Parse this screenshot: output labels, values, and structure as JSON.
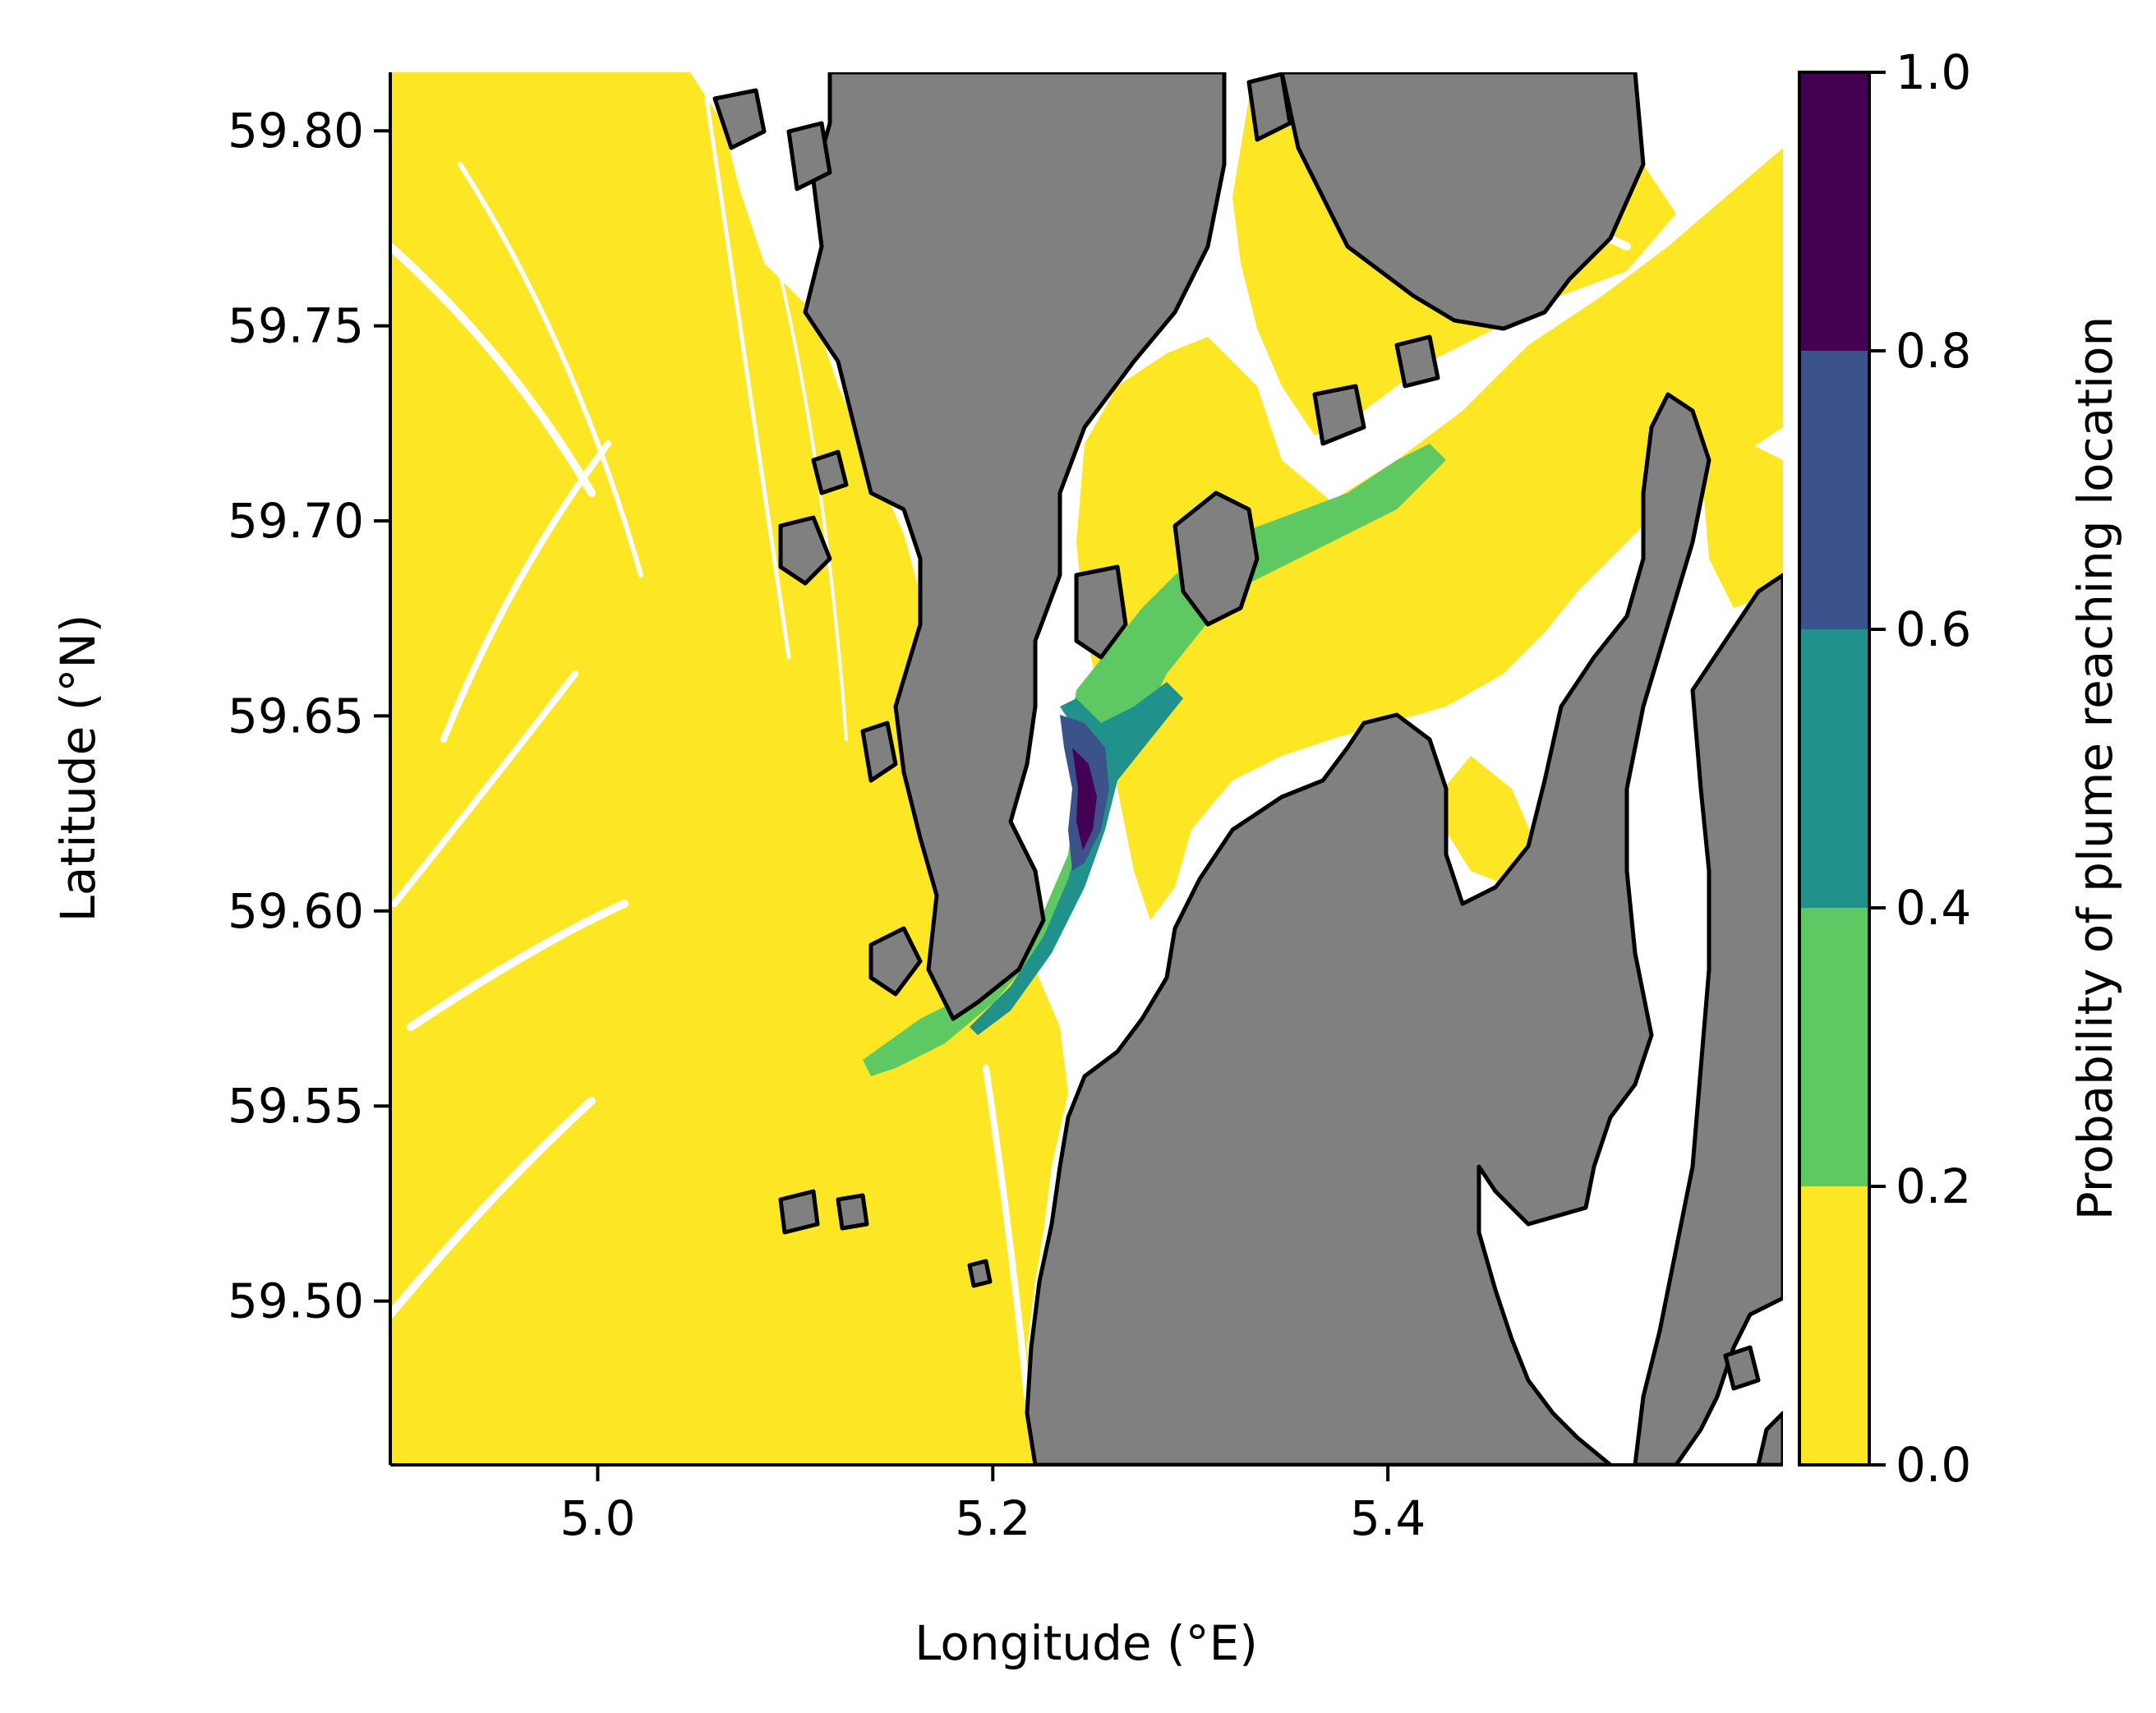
{
  "map": {
    "type": "probability-map",
    "xlabel": "Longitude (°E)",
    "ylabel": "Latitude (°N)",
    "xlim": [
      4.895,
      5.6
    ],
    "ylim": [
      59.458,
      59.815
    ],
    "x_ticks": [
      {
        "value": 5.0,
        "label": "5.0"
      },
      {
        "value": 5.2,
        "label": "5.2"
      },
      {
        "value": 5.4,
        "label": "5.4"
      }
    ],
    "y_ticks": [
      {
        "value": 59.5,
        "label": "59.50"
      },
      {
        "value": 59.55,
        "label": "59.55"
      },
      {
        "value": 59.6,
        "label": "59.60"
      },
      {
        "value": 59.65,
        "label": "59.65"
      },
      {
        "value": 59.7,
        "label": "59.70"
      },
      {
        "value": 59.75,
        "label": "59.75"
      },
      {
        "value": 59.8,
        "label": "59.80"
      }
    ],
    "colors": {
      "land": "#808080",
      "coastline": "#000000",
      "no_plume": "#ffffff"
    }
  },
  "colorbar": {
    "label": "Probability of plume reaching location",
    "range": [
      0,
      1
    ],
    "levels": [
      {
        "from": 0.0,
        "to": 0.2,
        "color": "#fde725"
      },
      {
        "from": 0.2,
        "to": 0.4,
        "color": "#5ec962"
      },
      {
        "from": 0.4,
        "to": 0.6,
        "color": "#21918c"
      },
      {
        "from": 0.6,
        "to": 0.8,
        "color": "#3b528b"
      },
      {
        "from": 0.8,
        "to": 1.0,
        "color": "#440154"
      }
    ],
    "ticks": [
      {
        "value": 0.0,
        "label": "0.0"
      },
      {
        "value": 0.2,
        "label": "0.2"
      },
      {
        "value": 0.4,
        "label": "0.4"
      },
      {
        "value": 0.6,
        "label": "0.6"
      },
      {
        "value": 0.8,
        "label": "0.8"
      },
      {
        "value": 1.0,
        "label": "1.0"
      }
    ]
  }
}
